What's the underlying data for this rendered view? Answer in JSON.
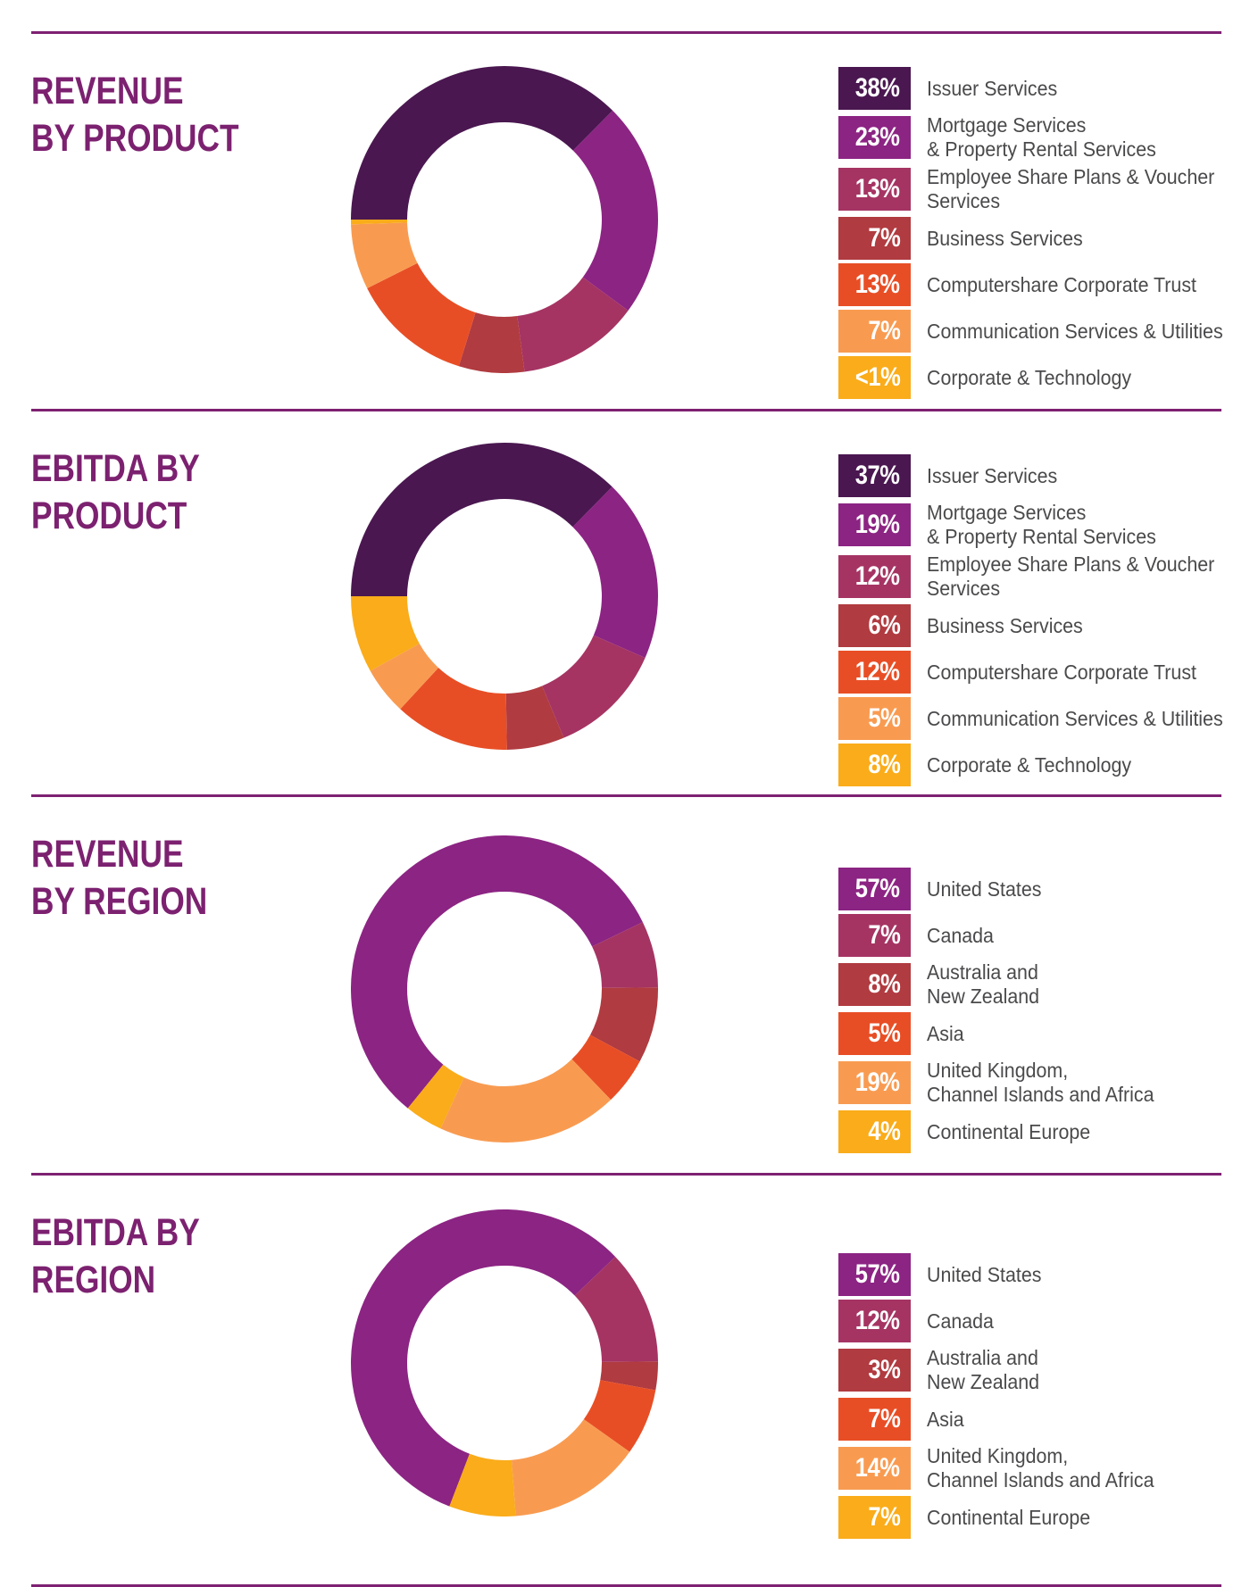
{
  "page": {
    "background": "#ffffff",
    "divider_color": "#7E2172",
    "title_color": "#7C2170",
    "label_color": "#4A4A4C",
    "badge_text_color": "#ffffff"
  },
  "chart_data": [
    {
      "type": "pie",
      "variant": "donut",
      "title": "REVENUE BY PRODUCT",
      "title_lines": [
        "REVENUE",
        "BY PRODUCT"
      ],
      "legend_position": "right",
      "start_angle_deg": 270,
      "direction": "clockwise",
      "slices": [
        {
          "pct": "38%",
          "value": 38,
          "label": "Issuer Services",
          "label_lines": [
            "Issuer Services"
          ],
          "color": "#4A1750"
        },
        {
          "pct": "23%",
          "value": 23,
          "label": "Mortgage Services & Property Rental Services",
          "label_lines": [
            "Mortgage Services",
            "& Property Rental Services"
          ],
          "color": "#8C2483"
        },
        {
          "pct": "13%",
          "value": 13,
          "label": "Employee Share Plans & Voucher Services",
          "label_lines": [
            "Employee Share Plans & Voucher",
            "Services"
          ],
          "color": "#A53463"
        },
        {
          "pct": "7%",
          "value": 7,
          "label": "Business Services",
          "label_lines": [
            "Business Services"
          ],
          "color": "#B03B40"
        },
        {
          "pct": "13%",
          "value": 13,
          "label": "Computershare Corporate Trust",
          "label_lines": [
            "Computershare Corporate Trust"
          ],
          "color": "#E84E25"
        },
        {
          "pct": "7%",
          "value": 7,
          "label": "Communication Services & Utilities",
          "label_lines": [
            "Communication Services & Utilities"
          ],
          "color": "#F89B51"
        },
        {
          "pct": "<1%",
          "value": 0.5,
          "label": "Corporate & Technology",
          "label_lines": [
            "Corporate & Technology"
          ],
          "color": "#FAAC1A"
        }
      ]
    },
    {
      "type": "pie",
      "variant": "donut",
      "title": "EBITDA BY PRODUCT",
      "title_lines": [
        "EBITDA BY",
        "PRODUCT"
      ],
      "legend_position": "right",
      "start_angle_deg": 270,
      "direction": "clockwise",
      "slices": [
        {
          "pct": "37%",
          "value": 37,
          "label": "Issuer Services",
          "label_lines": [
            "Issuer Services"
          ],
          "color": "#4A1750"
        },
        {
          "pct": "19%",
          "value": 19,
          "label": "Mortgage Services & Property Rental Services",
          "label_lines": [
            "Mortgage Services",
            "& Property Rental Services"
          ],
          "color": "#8C2483"
        },
        {
          "pct": "12%",
          "value": 12,
          "label": "Employee Share Plans & Voucher Services",
          "label_lines": [
            "Employee Share Plans & Voucher",
            "Services"
          ],
          "color": "#A53463"
        },
        {
          "pct": "6%",
          "value": 6,
          "label": "Business Services",
          "label_lines": [
            "Business Services"
          ],
          "color": "#B03B40"
        },
        {
          "pct": "12%",
          "value": 12,
          "label": "Computershare Corporate Trust",
          "label_lines": [
            "Computershare Corporate Trust"
          ],
          "color": "#E84E25"
        },
        {
          "pct": "5%",
          "value": 5,
          "label": "Communication Services & Utilities",
          "label_lines": [
            "Communication Services & Utilities"
          ],
          "color": "#F89B51"
        },
        {
          "pct": "8%",
          "value": 8,
          "label": "Corporate & Technology",
          "label_lines": [
            "Corporate & Technology"
          ],
          "color": "#FAAC1A"
        }
      ]
    },
    {
      "type": "pie",
      "variant": "donut",
      "title": "REVENUE BY REGION",
      "title_lines": [
        "REVENUE",
        "BY REGION"
      ],
      "legend_position": "right",
      "start_angle_deg": 219,
      "direction": "clockwise",
      "slices": [
        {
          "pct": "57%",
          "value": 57,
          "label": "United States",
          "label_lines": [
            "United States"
          ],
          "color": "#8C2483"
        },
        {
          "pct": "7%",
          "value": 7,
          "label": "Canada",
          "label_lines": [
            "Canada"
          ],
          "color": "#A53463"
        },
        {
          "pct": "8%",
          "value": 8,
          "label": "Australia and New Zealand",
          "label_lines": [
            "Australia and",
            "New Zealand"
          ],
          "color": "#B03B40"
        },
        {
          "pct": "5%",
          "value": 5,
          "label": "Asia",
          "label_lines": [
            "Asia"
          ],
          "color": "#E84E25"
        },
        {
          "pct": "19%",
          "value": 19,
          "label": "United Kingdom, Channel Islands and Africa",
          "label_lines": [
            "United Kingdom,",
            "Channel Islands and Africa"
          ],
          "color": "#F89B51"
        },
        {
          "pct": "4%",
          "value": 4,
          "label": "Continental Europe",
          "label_lines": [
            "Continental Europe"
          ],
          "color": "#FAAC1A"
        }
      ]
    },
    {
      "type": "pie",
      "variant": "donut",
      "title": "EBITDA BY REGION",
      "title_lines": [
        "EBITDA BY",
        "REGION"
      ],
      "legend_position": "right",
      "start_angle_deg": 201,
      "direction": "clockwise",
      "slices": [
        {
          "pct": "57%",
          "value": 57,
          "label": "United States",
          "label_lines": [
            "United States"
          ],
          "color": "#8C2483"
        },
        {
          "pct": "12%",
          "value": 12,
          "label": "Canada",
          "label_lines": [
            "Canada"
          ],
          "color": "#A53463"
        },
        {
          "pct": "3%",
          "value": 3,
          "label": "Australia and New Zealand",
          "label_lines": [
            "Australia and",
            "New Zealand"
          ],
          "color": "#B03B40"
        },
        {
          "pct": "7%",
          "value": 7,
          "label": "Asia",
          "label_lines": [
            "Asia"
          ],
          "color": "#E84E25"
        },
        {
          "pct": "14%",
          "value": 14,
          "label": "United Kingdom, Channel Islands and Africa",
          "label_lines": [
            "United Kingdom,",
            "Channel Islands and Africa"
          ],
          "color": "#F89B51"
        },
        {
          "pct": "7%",
          "value": 7,
          "label": "Continental Europe",
          "label_lines": [
            "Continental Europe"
          ],
          "color": "#FAAC1A"
        }
      ]
    }
  ]
}
